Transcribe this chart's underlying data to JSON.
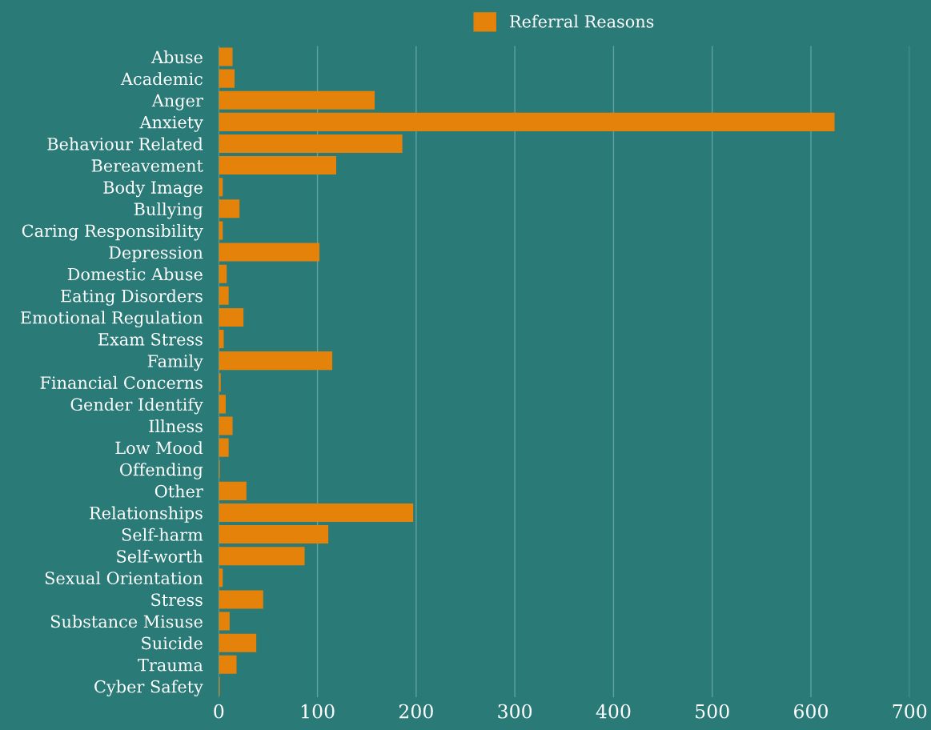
{
  "chart_data": {
    "type": "bar",
    "orientation": "horizontal",
    "categories": [
      "Abuse",
      "Academic",
      "Anger",
      "Anxiety",
      "Behaviour Related",
      "Bereavement",
      "Body Image",
      "Bullying",
      "Caring Responsibility",
      "Depression",
      "Domestic Abuse",
      "Eating Disorders",
      "Emotional Regulation",
      "Exam Stress",
      "Family",
      "Financial Concerns",
      "Gender Identify",
      "Illness",
      "Low Mood",
      "Offending",
      "Other",
      "Relationships",
      "Self-harm",
      "Self-worth",
      "Sexual Orientation",
      "Stress",
      "Substance Misuse",
      "Suicide",
      "Trauma",
      "Cyber Safety"
    ],
    "series": [
      {
        "name": "Referral Reasons",
        "color": "#e5820a",
        "values": [
          14,
          16,
          158,
          624,
          186,
          119,
          4,
          21,
          4,
          102,
          8,
          10,
          25,
          5,
          115,
          2,
          7,
          14,
          10,
          1,
          28,
          197,
          111,
          87,
          4,
          45,
          11,
          38,
          18,
          1
        ]
      }
    ],
    "xlim": [
      0,
      700
    ],
    "xticks": [
      0,
      100,
      200,
      300,
      400,
      500,
      600,
      700
    ],
    "grid": "x",
    "legend": "top"
  }
}
